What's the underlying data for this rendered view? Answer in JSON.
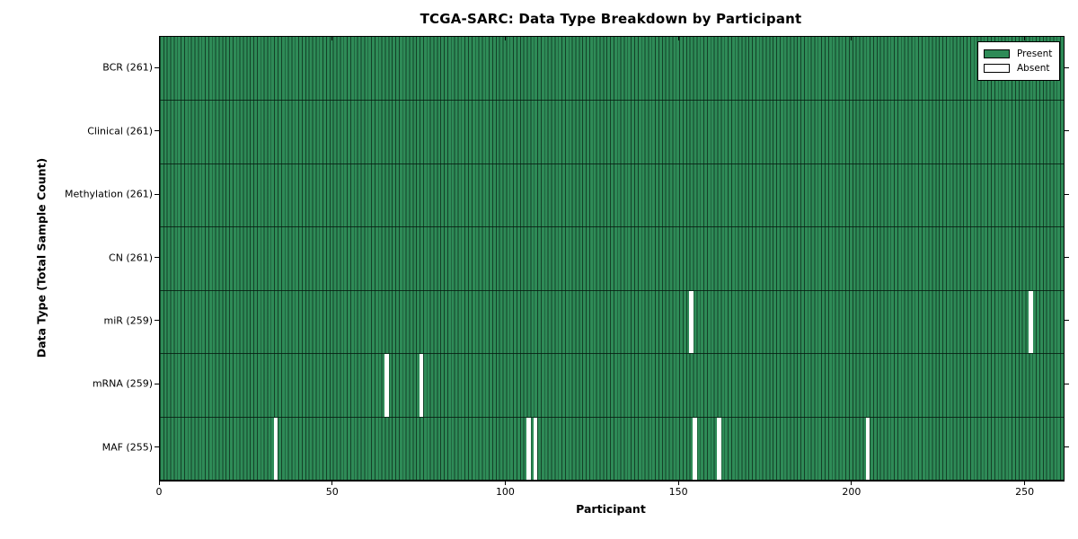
{
  "title": "TCGA-SARC: Data Type Breakdown by Participant",
  "x_axis_label": "Participant",
  "y_axis_label": "Data Type (Total Sample Count)",
  "legend": {
    "present_label": "Present",
    "absent_label": "Absent"
  },
  "colors": {
    "present": "#2e8b57",
    "absent": "#ffffff",
    "bar_edge": "#0a2818",
    "axis": "#000000",
    "figure_background": "#ffffff"
  },
  "chart_data": {
    "type": "heatmap",
    "title": "TCGA-SARC: Data Type Breakdown by Participant",
    "xlabel": "Participant",
    "ylabel": "Data Type (Total Sample Count)",
    "n_participants": 261,
    "xlim": [
      0,
      261
    ],
    "x_ticks": [
      0,
      50,
      100,
      150,
      200,
      250
    ],
    "grid": false,
    "legend_position": "upper right",
    "legend_entries": [
      {
        "label": "Present",
        "color": "#2e8b57"
      },
      {
        "label": "Absent",
        "color": "#ffffff"
      }
    ],
    "rows": [
      {
        "name": "BCR",
        "label": "BCR (261)",
        "total": 261,
        "present_count": 261,
        "absent_participants": []
      },
      {
        "name": "Clinical",
        "label": "Clinical (261)",
        "total": 261,
        "present_count": 261,
        "absent_participants": []
      },
      {
        "name": "Methylation",
        "label": "Methylation (261)",
        "total": 261,
        "present_count": 261,
        "absent_participants": []
      },
      {
        "name": "CN",
        "label": "CN (261)",
        "total": 261,
        "present_count": 261,
        "absent_participants": []
      },
      {
        "name": "miR",
        "label": "miR (259)",
        "total": 259,
        "present_count": 259,
        "absent_participants": [
          153,
          251
        ]
      },
      {
        "name": "mRNA",
        "label": "mRNA (259)",
        "total": 259,
        "present_count": 259,
        "absent_participants": [
          65,
          75
        ]
      },
      {
        "name": "MAF",
        "label": "MAF (255)",
        "total": 255,
        "present_count": 255,
        "absent_participants": [
          33,
          106,
          108,
          154,
          161,
          204
        ]
      }
    ]
  }
}
